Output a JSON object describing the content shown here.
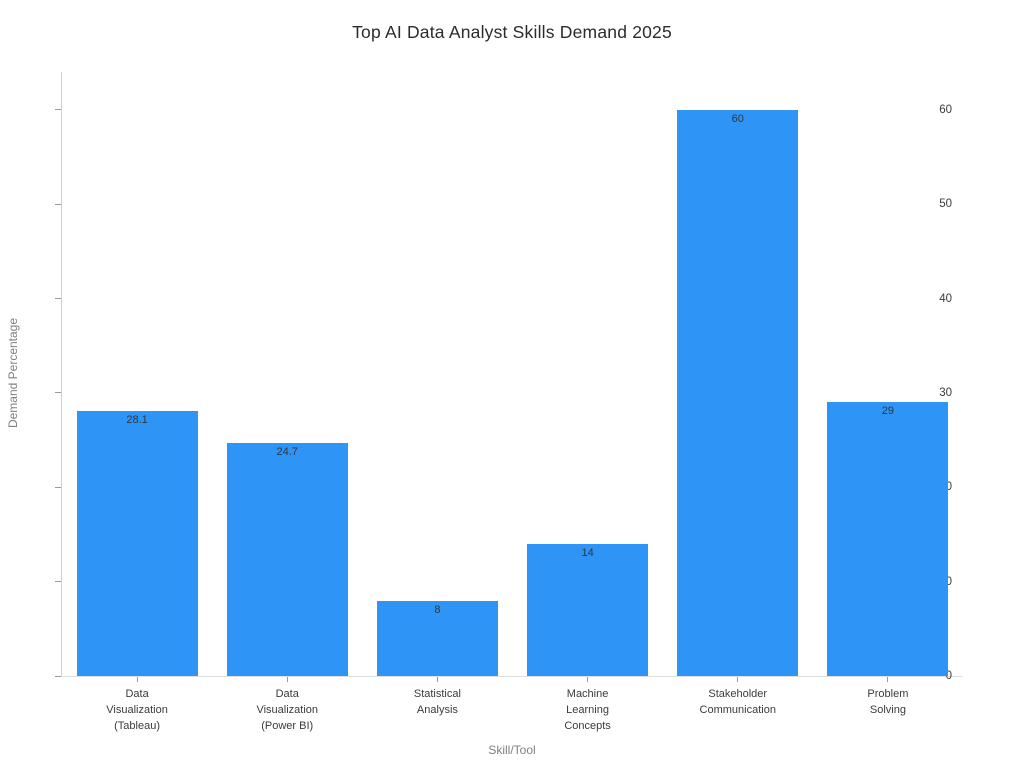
{
  "chart_data": {
    "type": "bar",
    "title": "Top AI Data Analyst Skills Demand 2025",
    "xlabel": "Skill/Tool",
    "ylabel": "Demand Percentage",
    "categories": [
      "Data Visualization (Tableau)",
      "Data Visualization (Power BI)",
      "Statistical Analysis",
      "Machine Learning Concepts",
      "Stakeholder Communication",
      "Problem Solving"
    ],
    "category_label_lines": [
      [
        "Data",
        "Visualization",
        "(Tableau)"
      ],
      [
        "Data",
        "Visualization",
        "(Power BI)"
      ],
      [
        "Statistical",
        "Analysis"
      ],
      [
        "Machine",
        "Learning",
        "Concepts"
      ],
      [
        "Stakeholder",
        "Communication"
      ],
      [
        "Problem",
        "Solving"
      ]
    ],
    "values": [
      28.1,
      24.7,
      8,
      14,
      60,
      29
    ],
    "value_labels": [
      "28.1",
      "24.7",
      "8",
      "14",
      "60",
      "29"
    ],
    "y_ticks": [
      0,
      10,
      20,
      30,
      40,
      50,
      60
    ],
    "ylim": [
      0,
      64
    ],
    "grid": false,
    "legend": "none",
    "bar_color": "#2e94f5",
    "bar_width_fraction": 0.806
  }
}
